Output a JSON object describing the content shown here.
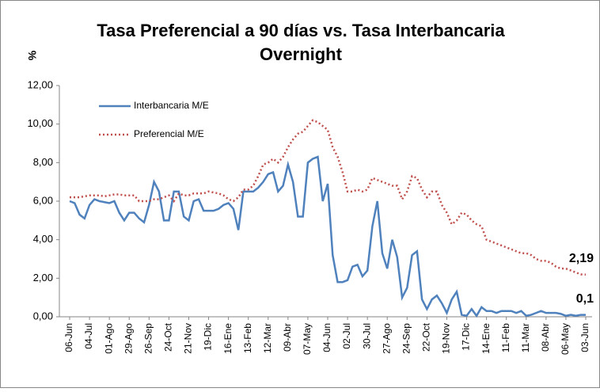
{
  "chart_data": {
    "type": "line",
    "title": [
      "Tasa Preferencial a 90 días vs. Tasa Interbancaria",
      "Overnight"
    ],
    "y_label": "%",
    "categories": [
      "06-Jun",
      null,
      null,
      null,
      "04-Jul",
      null,
      null,
      null,
      "01-Ago",
      null,
      null,
      null,
      "29-Ago",
      null,
      null,
      null,
      "26-Sep",
      null,
      null,
      null,
      "24-Oct",
      null,
      null,
      null,
      "21-Nov",
      null,
      null,
      null,
      "19-Dic",
      null,
      null,
      null,
      "16-Ene",
      null,
      null,
      null,
      "13-Feb",
      null,
      null,
      null,
      "12-Mar",
      null,
      null,
      null,
      "09-Abr",
      null,
      null,
      null,
      "07-May",
      null,
      null,
      null,
      "04-Jun",
      null,
      null,
      null,
      "02-Jul",
      null,
      null,
      null,
      "30-Jul",
      null,
      null,
      null,
      "27-Ago",
      null,
      null,
      null,
      "24-Sep",
      null,
      null,
      null,
      "22-Oct",
      null,
      null,
      null,
      "19-Nov",
      null,
      null,
      null,
      "17-Dic",
      null,
      null,
      null,
      "14-Ene",
      null,
      null,
      null,
      "11-Feb",
      null,
      null,
      null,
      "11-Mar",
      null,
      null,
      null,
      "08-Abr",
      null,
      null,
      null,
      "06-May",
      null,
      null,
      null,
      "03-Jun"
    ],
    "series": [
      {
        "name": "Interbancaria M/E",
        "color": "#4f81bd",
        "style": "solid",
        "values": [
          6.0,
          5.9,
          5.3,
          5.1,
          5.8,
          6.1,
          6.0,
          5.95,
          5.9,
          6.0,
          5.4,
          5.0,
          5.4,
          5.4,
          5.1,
          4.9,
          5.8,
          7.0,
          6.5,
          5.0,
          5.0,
          6.5,
          6.5,
          5.2,
          5.0,
          6.0,
          6.1,
          5.5,
          5.5,
          5.5,
          5.6,
          5.8,
          5.9,
          5.6,
          4.5,
          6.5,
          6.5,
          6.5,
          6.7,
          7.0,
          7.4,
          7.5,
          6.5,
          6.8,
          7.9,
          7.0,
          5.2,
          5.2,
          8.0,
          8.2,
          8.3,
          6.0,
          6.9,
          3.2,
          1.8,
          1.8,
          1.9,
          2.6,
          2.7,
          2.1,
          2.4,
          4.7,
          6.0,
          3.3,
          2.5,
          4.0,
          3.1,
          1.0,
          1.5,
          3.2,
          3.4,
          0.9,
          0.4,
          0.9,
          1.1,
          0.7,
          0.2,
          0.9,
          1.3,
          0.1,
          0.05,
          0.4,
          0.05,
          0.5,
          0.3,
          0.3,
          0.2,
          0.3,
          0.3,
          0.3,
          0.2,
          0.3,
          0.05,
          0.1,
          0.2,
          0.3,
          0.2,
          0.2,
          0.2,
          0.15,
          0.05,
          0.1,
          0.05,
          0.1,
          0.1
        ],
        "value_labels": [
          null,
          null,
          null,
          null,
          null,
          null,
          null,
          null,
          null,
          null,
          null,
          null,
          null,
          null,
          null,
          null,
          null,
          null,
          null,
          null,
          null,
          null,
          null,
          null,
          null,
          null,
          null,
          null,
          null,
          null,
          null,
          null,
          null,
          null,
          null,
          null,
          null,
          null,
          null,
          null,
          null,
          null,
          null,
          null,
          null,
          null,
          null,
          null,
          null,
          null,
          null,
          null,
          null,
          null,
          null,
          null,
          null,
          null,
          null,
          null,
          null,
          null,
          null,
          null,
          null,
          null,
          null,
          null,
          null,
          null,
          null,
          null,
          null,
          null,
          null,
          null,
          null,
          null,
          null,
          null,
          null,
          null,
          null,
          null,
          null,
          null,
          null,
          null,
          null,
          null,
          null,
          null,
          null,
          null,
          null,
          null,
          null,
          null,
          null,
          null,
          null,
          null,
          null,
          null,
          "0,1"
        ]
      },
      {
        "name": "Preferencial M/E",
        "color": "#c0504d",
        "style": "dotted",
        "values": [
          6.2,
          6.2,
          6.2,
          6.25,
          6.3,
          6.3,
          6.3,
          6.25,
          6.3,
          6.35,
          6.35,
          6.3,
          6.3,
          6.3,
          6.0,
          6.0,
          6.0,
          6.1,
          6.1,
          6.2,
          6.3,
          6.0,
          6.4,
          6.3,
          6.3,
          6.4,
          6.4,
          6.4,
          6.5,
          6.45,
          6.4,
          6.3,
          6.1,
          6.0,
          6.2,
          6.6,
          6.6,
          6.8,
          7.3,
          7.9,
          8.0,
          8.2,
          8.0,
          8.3,
          8.8,
          9.2,
          9.5,
          9.6,
          9.9,
          10.2,
          10.1,
          9.9,
          9.7,
          8.8,
          8.3,
          7.5,
          6.5,
          6.5,
          6.6,
          6.5,
          6.6,
          7.2,
          7.1,
          7.0,
          6.9,
          6.8,
          6.8,
          6.1,
          6.5,
          7.3,
          7.2,
          6.6,
          6.2,
          6.5,
          6.5,
          5.8,
          5.4,
          4.8,
          5.0,
          5.4,
          5.3,
          5.0,
          4.8,
          4.7,
          4.0,
          3.9,
          3.8,
          3.7,
          3.6,
          3.5,
          3.4,
          3.3,
          3.3,
          3.2,
          3.0,
          2.9,
          2.9,
          2.8,
          2.6,
          2.5,
          2.5,
          2.4,
          2.3,
          2.2,
          2.19
        ],
        "value_labels": [
          null,
          null,
          null,
          null,
          null,
          null,
          null,
          null,
          null,
          null,
          null,
          null,
          null,
          null,
          null,
          null,
          null,
          null,
          null,
          null,
          null,
          null,
          null,
          null,
          null,
          null,
          null,
          null,
          null,
          null,
          null,
          null,
          null,
          null,
          null,
          null,
          null,
          null,
          null,
          null,
          null,
          null,
          null,
          null,
          null,
          null,
          null,
          null,
          null,
          null,
          null,
          null,
          null,
          null,
          null,
          null,
          null,
          null,
          null,
          null,
          null,
          null,
          null,
          null,
          null,
          null,
          null,
          null,
          null,
          null,
          null,
          null,
          null,
          null,
          null,
          null,
          null,
          null,
          null,
          null,
          null,
          null,
          null,
          null,
          null,
          null,
          null,
          null,
          null,
          null,
          null,
          null,
          null,
          null,
          null,
          null,
          null,
          null,
          null,
          null,
          null,
          null,
          null,
          null,
          "2,19"
        ]
      }
    ],
    "ylim": [
      0,
      12
    ],
    "yticks": [
      {
        "value": 0,
        "label": "0,00"
      },
      {
        "value": 2,
        "label": "2,00"
      },
      {
        "value": 4,
        "label": "4,00"
      },
      {
        "value": 6,
        "label": "6,00"
      },
      {
        "value": 8,
        "label": "8,00"
      },
      {
        "value": 10,
        "label": "10,00"
      },
      {
        "value": 12,
        "label": "12,00"
      }
    ],
    "grid": false,
    "legend": "upper left"
  }
}
